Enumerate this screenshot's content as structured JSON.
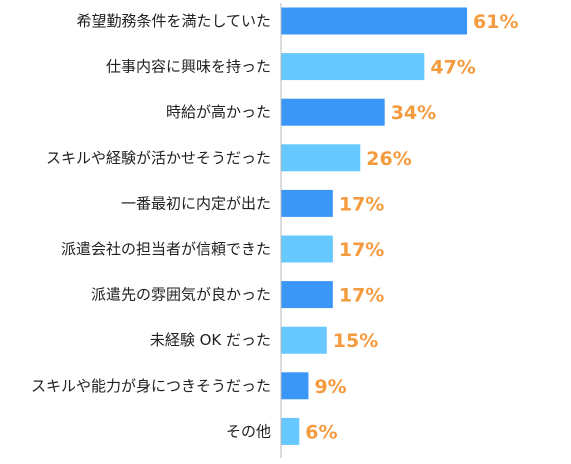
{
  "chart_data": {
    "type": "bar",
    "orientation": "horizontal",
    "categories": [
      "希望勤務条件を満たしていた",
      "仕事内容に興味を持った",
      "時給が高かった",
      "スキルや経験が活かせそうだった",
      "一番最初に内定が出た",
      "派遣会社の担当者が信頼できた",
      "派遣先の雰囲気が良かった",
      "未経験 OK だった",
      "スキルや能力が身につきそうだった",
      "その他"
    ],
    "values": [
      61,
      47,
      34,
      26,
      17,
      17,
      17,
      15,
      9,
      6
    ],
    "value_labels": [
      "61%",
      "47%",
      "34%",
      "26%",
      "17%",
      "17%",
      "17%",
      "15%",
      "9%",
      "6%"
    ],
    "unit": "%",
    "xlim": [
      0,
      100
    ],
    "grid": false,
    "legend": "none",
    "colors": {
      "bar_dark": "#3a96f7",
      "bar_light": "#66c8fe",
      "value_text": "#f59b3f",
      "axis": "#b8b8b8",
      "category_text": "#222222"
    }
  }
}
